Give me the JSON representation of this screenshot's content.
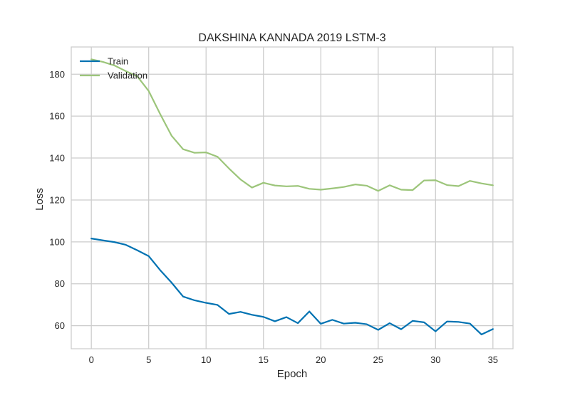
{
  "chart_data": {
    "type": "line",
    "title": "DAKSHINA KANNADA 2019 LSTM-3",
    "xlabel": "Epoch",
    "ylabel": "Loss",
    "xlim": [
      -1.75,
      36.75
    ],
    "ylim": [
      49,
      193
    ],
    "xticks": [
      0,
      5,
      10,
      15,
      20,
      25,
      30,
      35
    ],
    "yticks": [
      60,
      80,
      100,
      120,
      140,
      160,
      180
    ],
    "grid": true,
    "legend_position": "top-left",
    "x": [
      0,
      1,
      2,
      3,
      4,
      5,
      6,
      7,
      8,
      9,
      10,
      11,
      12,
      13,
      14,
      15,
      16,
      17,
      18,
      19,
      20,
      21,
      22,
      23,
      24,
      25,
      26,
      27,
      28,
      29,
      30,
      31,
      32,
      33,
      34,
      35
    ],
    "series": [
      {
        "name": "Train",
        "color": "#0072b2",
        "values": [
          101.6,
          100.7,
          99.9,
          98.6,
          96.0,
          93.2,
          86.5,
          80.5,
          73.9,
          72.1,
          70.9,
          69.9,
          65.6,
          66.6,
          65.2,
          64.2,
          62.1,
          64.1,
          61.2,
          66.8,
          60.9,
          62.8,
          61.0,
          61.4,
          60.7,
          58.0,
          61.2,
          58.3,
          62.3,
          61.6,
          57.3,
          62.0,
          61.8,
          61.0,
          55.8,
          58.4
        ]
      },
      {
        "name": "Validation",
        "color": "#9cc57a",
        "values": [
          187.1,
          185.9,
          184.2,
          181.5,
          179.0,
          172.0,
          161.0,
          150.6,
          144.2,
          142.5,
          142.7,
          140.6,
          135.0,
          129.8,
          125.9,
          128.2,
          126.9,
          126.5,
          126.7,
          125.3,
          124.9,
          125.5,
          126.2,
          127.4,
          126.8,
          124.3,
          127.0,
          124.9,
          124.7,
          129.3,
          129.4,
          127.1,
          126.6,
          129.1,
          127.9,
          127.0
        ]
      }
    ]
  }
}
